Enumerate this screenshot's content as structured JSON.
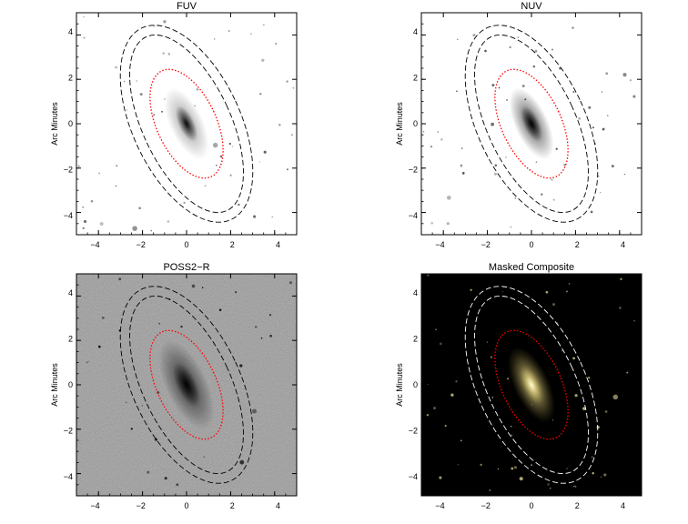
{
  "figure": {
    "panels": [
      {
        "id": "fuv",
        "title": "FUV",
        "ylabel": "Arc Minutes",
        "background": "#ffffff",
        "star_color": "#555555",
        "galaxy_color": "#000000",
        "contour_color": "#000000"
      },
      {
        "id": "nuv",
        "title": "NUV",
        "ylabel": "Arc Minutes",
        "background": "#ffffff",
        "star_color": "#444444",
        "galaxy_color": "#000000",
        "contour_color": "#000000"
      },
      {
        "id": "poss2r",
        "title": "POSS2−R",
        "ylabel": "Arc Minutes",
        "background": "#9a9a9a",
        "star_color": "#000000",
        "galaxy_color": "#000000",
        "contour_color": "#000000"
      },
      {
        "id": "composite",
        "title": "Masked Composite",
        "ylabel": "Arc Minutes",
        "background": "#000000",
        "star_color": "#c9c28a",
        "galaxy_color": "#fff4a8",
        "contour_color": "#ffffff"
      }
    ],
    "aperture_color": "#ff0000",
    "x_ticks": [
      "−4",
      "−2",
      "0",
      "2",
      "4"
    ],
    "y_ticks": [
      "4",
      "2",
      "0",
      "−2",
      "−4"
    ]
  },
  "chart_data": {
    "type": "image-grid",
    "xlim": [
      -5,
      5
    ],
    "ylim": [
      -5,
      5
    ],
    "tick_values": [
      -4,
      -2,
      0,
      2,
      4
    ],
    "ylabel": "Arc Minutes",
    "galaxy_center": [
      0,
      0
    ],
    "position_angle_deg": 25,
    "apertures": [
      {
        "name": "inner",
        "style": "dotted",
        "semi_major": 2.65,
        "semi_minor": 1.35
      },
      {
        "name": "outer-1",
        "style": "dashed",
        "semi_major": 4.35,
        "semi_minor": 2.0
      },
      {
        "name": "outer-2",
        "style": "dashed",
        "semi_major": 4.8,
        "semi_minor": 2.45
      }
    ]
  }
}
